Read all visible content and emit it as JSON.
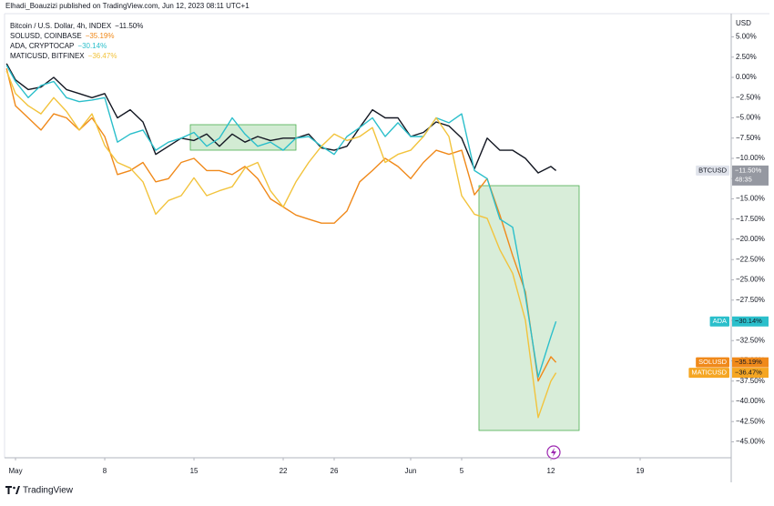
{
  "header": {
    "publisher": "Elhadi_Boauzizi published on TradingView.com, Jun 12, 2023 08:11 UTC+1"
  },
  "footer": {
    "brand": "TradingView"
  },
  "chart_data": {
    "type": "line",
    "axis_unit": "USD",
    "x": [
      -0.7,
      0,
      1,
      2,
      3,
      4,
      5,
      6,
      7,
      8,
      9,
      10,
      11,
      12,
      13,
      14,
      15,
      16,
      17,
      18,
      19,
      20,
      21,
      22,
      23,
      24,
      25,
      26,
      27,
      28,
      29,
      30,
      31,
      32,
      33,
      34,
      35,
      36,
      37,
      38,
      39,
      40,
      41,
      42,
      42.4
    ],
    "xlim": [
      -0.86,
      55.93
    ],
    "xticks": [
      {
        "value": 0,
        "label": "May"
      },
      {
        "value": 7,
        "label": "8"
      },
      {
        "value": 14,
        "label": "15"
      },
      {
        "value": 21,
        "label": "22"
      },
      {
        "value": 25,
        "label": "26"
      },
      {
        "value": 31,
        "label": "Jun"
      },
      {
        "value": 35,
        "label": "5"
      },
      {
        "value": 42,
        "label": "12"
      },
      {
        "value": 49,
        "label": "19"
      }
    ],
    "ylim": [
      -46.97,
      7.87
    ],
    "yticks": [
      {
        "value": 5,
        "label": "5.00%"
      },
      {
        "value": 2.5,
        "label": "2.50%"
      },
      {
        "value": 0,
        "label": "0.00%"
      },
      {
        "value": -2.5,
        "label": "−2.50%"
      },
      {
        "value": -5,
        "label": "−5.00%"
      },
      {
        "value": -7.5,
        "label": "−7.50%"
      },
      {
        "value": -10,
        "label": "−10.00%"
      },
      {
        "value": -12.5,
        "label": "−12.50%"
      },
      {
        "value": -15,
        "label": "−15.00%"
      },
      {
        "value": -17.5,
        "label": "−17.50%"
      },
      {
        "value": -20,
        "label": "−20.00%"
      },
      {
        "value": -22.5,
        "label": "−22.50%"
      },
      {
        "value": -25,
        "label": "−25.00%"
      },
      {
        "value": -27.5,
        "label": "−27.50%"
      },
      {
        "value": -30,
        "label": "−30.00%"
      },
      {
        "value": -32.5,
        "label": "−32.50%"
      },
      {
        "value": -35,
        "label": "−35.00%"
      },
      {
        "value": -37.5,
        "label": "−37.50%"
      },
      {
        "value": -40,
        "label": "−40.00%"
      },
      {
        "value": -42.5,
        "label": "−42.50%"
      },
      {
        "value": -45,
        "label": "−45.00%"
      }
    ],
    "series": [
      {
        "name": "Bitcoin / U.S. Dollar, 4h, INDEX",
        "ticker": "BTCUSD",
        "last_label": "−11.50%",
        "countdown": "48:35",
        "color": "#131722",
        "tag_color": "#9598a1",
        "values": [
          1.7,
          -0.3,
          -1.5,
          -1.2,
          0,
          -1.5,
          -2.0,
          -2.5,
          -2.0,
          -5.0,
          -4.0,
          -5.5,
          -9.5,
          -8.5,
          -7.5,
          -7.8,
          -7.0,
          -8.5,
          -7.0,
          -8.0,
          -7.3,
          -7.8,
          -7.5,
          -7.5,
          -7.0,
          -8.7,
          -9.0,
          -8.5,
          -6.2,
          -4.0,
          -5.0,
          -5.0,
          -7.3,
          -6.8,
          -5.5,
          -6.0,
          -7.5,
          -11.3,
          -7.5,
          -9.0,
          -9.0,
          -10.0,
          -11.8,
          -11.0,
          -11.5
        ]
      },
      {
        "name": "SOLUSD, COINBASE",
        "ticker": "SOLUSD",
        "last_label": "−35.19%",
        "color": "#f0891a",
        "tag_color": "#f0891a",
        "values": [
          1.1,
          -3.5,
          -5.0,
          -6.5,
          -4.5,
          -5.0,
          -6.5,
          -5.0,
          -7.3,
          -12.0,
          -11.5,
          -10.5,
          -12.9,
          -12.5,
          -10.5,
          -10.0,
          -11.5,
          -11.5,
          -12.0,
          -11.0,
          -12.5,
          -15.0,
          -16.0,
          -17.0,
          -17.5,
          -18.0,
          -18.0,
          -16.5,
          -12.9,
          -11.5,
          -10.0,
          -11.0,
          -12.5,
          -10.5,
          -9.0,
          -9.5,
          -9.0,
          -14.5,
          -12.5,
          -17.0,
          -22.0,
          -26.5,
          -37.5,
          -34.5,
          -35.19
        ]
      },
      {
        "name": "ADA, CRYPTOCAP",
        "ticker": "ADA",
        "last_label": "−30.14%",
        "color": "#2bbfcb",
        "tag_color": "#2bbfcb",
        "values": [
          1.5,
          -0.5,
          -2.5,
          -1.0,
          -0.5,
          -2.5,
          -3.0,
          -2.8,
          -2.5,
          -8.0,
          -7.0,
          -6.5,
          -9.0,
          -8.0,
          -7.5,
          -6.8,
          -8.5,
          -7.5,
          -5.0,
          -7.0,
          -8.5,
          -8.0,
          -9.0,
          -7.5,
          -7.3,
          -8.5,
          -9.5,
          -7.3,
          -6.2,
          -5.0,
          -7.3,
          -5.6,
          -7.3,
          -7.3,
          -5.0,
          -5.6,
          -4.5,
          -11.5,
          -12.5,
          -17.5,
          -18.5,
          -27.0,
          -37.0,
          -32.0,
          -30.14
        ]
      },
      {
        "name": "MATICUSD, BITFINEX",
        "ticker": "MATICUSD",
        "last_label": "−36.47%",
        "color": "#f2c33c",
        "tag_color": "#f5a623",
        "values": [
          0.8,
          -2.0,
          -3.5,
          -4.5,
          -2.5,
          -4.2,
          -6.5,
          -4.5,
          -8.4,
          -10.5,
          -11.2,
          -12.9,
          -16.9,
          -15.2,
          -14.6,
          -12.4,
          -14.6,
          -14.0,
          -13.5,
          -11.2,
          -10.5,
          -14.0,
          -16.0,
          -12.9,
          -10.5,
          -8.5,
          -7.0,
          -7.8,
          -7.3,
          -6.2,
          -10.5,
          -9.5,
          -9.0,
          -7.3,
          -5.0,
          -7.3,
          -14.6,
          -16.9,
          -17.4,
          -21.3,
          -24.2,
          -30.0,
          -42.0,
          -37.5,
          -36.47
        ]
      }
    ]
  }
}
